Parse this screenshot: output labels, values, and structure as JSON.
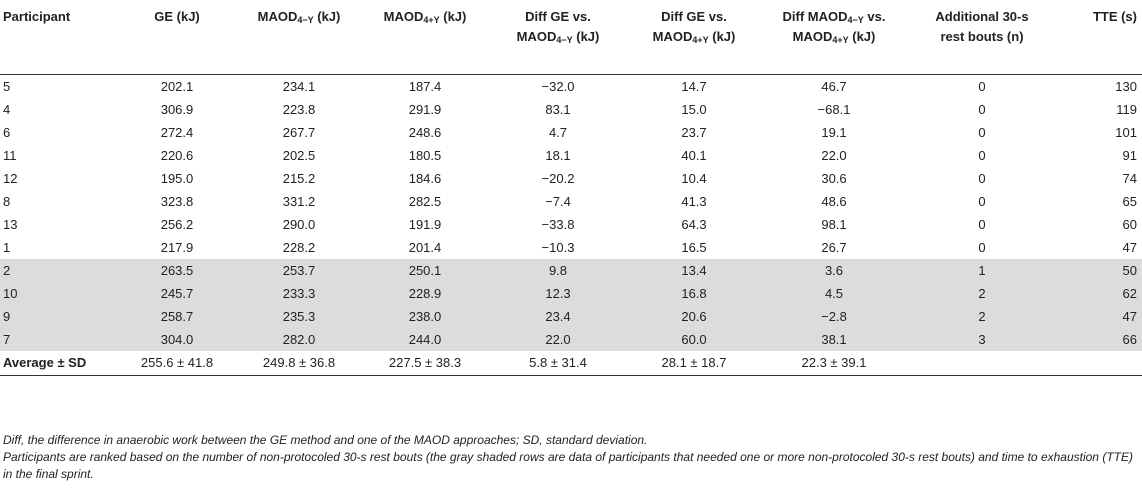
{
  "table": {
    "headers": {
      "participant": "Participant",
      "ge": "GE (kJ)",
      "maod4y_pre": "MAOD",
      "maod4y_sub": "4−Y",
      "maod4y_post": " (kJ)",
      "maod4py_pre": "MAOD",
      "maod4py_sub": "4+Y",
      "maod4py_post": " (kJ)",
      "diff1_line1": "Diff GE vs.",
      "diff1_pre": "MAOD",
      "diff1_sub": "4−Y",
      "diff1_post": " (kJ)",
      "diff2_line1": "Diff GE vs.",
      "diff2_pre": "MAOD",
      "diff2_sub": "4+Y",
      "diff2_post": " (kJ)",
      "diff3_pre": "Diff MAOD",
      "diff3_sub": "4−Y",
      "diff3_mid": " vs.",
      "diff3_pre2": "MAOD",
      "diff3_sub2": "4+Y",
      "diff3_post": " (kJ)",
      "rest_line1": "Additional 30-s",
      "rest_line2": "rest bouts (n)",
      "tte": "TTE (s)"
    },
    "rows": [
      {
        "participant": "5",
        "ge": "202.1",
        "maod4y": "234.1",
        "maod4py": "187.4",
        "diff1": "−32.0",
        "diff2": "14.7",
        "diff3": "46.7",
        "rest": "0",
        "tte": "130"
      },
      {
        "participant": "4",
        "ge": "306.9",
        "maod4y": "223.8",
        "maod4py": "291.9",
        "diff1": "83.1",
        "diff2": "15.0",
        "diff3": "−68.1",
        "rest": "0",
        "tte": "119"
      },
      {
        "participant": "6",
        "ge": "272.4",
        "maod4y": "267.7",
        "maod4py": "248.6",
        "diff1": "4.7",
        "diff2": "23.7",
        "diff3": "19.1",
        "rest": "0",
        "tte": "101"
      },
      {
        "participant": "11",
        "ge": "220.6",
        "maod4y": "202.5",
        "maod4py": "180.5",
        "diff1": "18.1",
        "diff2": "40.1",
        "diff3": "22.0",
        "rest": "0",
        "tte": "91"
      },
      {
        "participant": "12",
        "ge": "195.0",
        "maod4y": "215.2",
        "maod4py": "184.6",
        "diff1": "−20.2",
        "diff2": "10.4",
        "diff3": "30.6",
        "rest": "0",
        "tte": "74"
      },
      {
        "participant": "8",
        "ge": "323.8",
        "maod4y": "331.2",
        "maod4py": "282.5",
        "diff1": "−7.4",
        "diff2": "41.3",
        "diff3": "48.6",
        "rest": "0",
        "tte": "65"
      },
      {
        "participant": "13",
        "ge": "256.2",
        "maod4y": "290.0",
        "maod4py": "191.9",
        "diff1": "−33.8",
        "diff2": "64.3",
        "diff3": "98.1",
        "rest": "0",
        "tte": "60"
      },
      {
        "participant": "1",
        "ge": "217.9",
        "maod4y": "228.2",
        "maod4py": "201.4",
        "diff1": "−10.3",
        "diff2": "16.5",
        "diff3": "26.7",
        "rest": "0",
        "tte": "47"
      },
      {
        "participant": "2",
        "ge": "263.5",
        "maod4y": "253.7",
        "maod4py": "250.1",
        "diff1": "9.8",
        "diff2": "13.4",
        "diff3": "3.6",
        "rest": "1",
        "tte": "50"
      },
      {
        "participant": "10",
        "ge": "245.7",
        "maod4y": "233.3",
        "maod4py": "228.9",
        "diff1": "12.3",
        "diff2": "16.8",
        "diff3": "4.5",
        "rest": "2",
        "tte": "62"
      },
      {
        "participant": "9",
        "ge": "258.7",
        "maod4y": "235.3",
        "maod4py": "238.0",
        "diff1": "23.4",
        "diff2": "20.6",
        "diff3": "−2.8",
        "rest": "2",
        "tte": "47"
      },
      {
        "participant": "7",
        "ge": "304.0",
        "maod4y": "282.0",
        "maod4py": "244.0",
        "diff1": "22.0",
        "diff2": "60.0",
        "diff3": "38.1",
        "rest": "3",
        "tte": "66"
      }
    ],
    "average": {
      "label": "Average ± SD",
      "ge": "255.6 ± 41.8",
      "maod4y": "249.8 ± 36.8",
      "maod4py": "227.5 ± 38.3",
      "diff1": "5.8 ± 31.4",
      "diff2": "28.1 ± 18.7",
      "diff3": "22.3 ± 39.1",
      "rest": "",
      "tte": ""
    }
  },
  "footnotes": {
    "note1": "Diff, the difference in anaerobic work between the GE method and one of the MAOD approaches; SD, standard deviation.",
    "note2": "Participants are ranked based on the number of non-protocoled 30-s rest bouts (the gray shaded rows are data of participants that needed one or more non-protocoled 30-s rest bouts) and time to exhaustion (TTE) in the final sprint."
  }
}
